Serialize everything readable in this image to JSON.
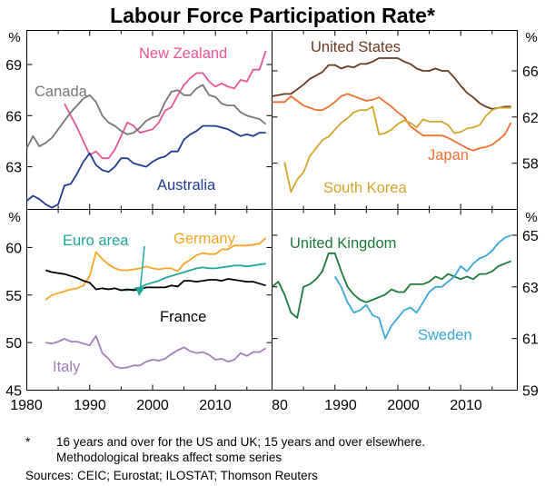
{
  "title": "Labour Force Participation Rate*",
  "footnote_marker": "*",
  "footnote_line1": "16 years and over for the US and UK; 15 years and over elsewhere.",
  "footnote_line2": "Methodological breaks affect some series",
  "sources": "Sources: CEIC; Eurostat; ILOSTAT; Thomson Reuters",
  "chart_data": [
    {
      "type": "line",
      "panel": "top-left",
      "unit_label": "%",
      "xlim": [
        1980,
        2019
      ],
      "ylim": [
        60.5,
        71
      ],
      "yticks": [
        63,
        66,
        69
      ],
      "series": [
        {
          "name": "New Zealand",
          "color": "#e8559a",
          "x": [
            1986,
            1988,
            1990,
            1991,
            1992,
            1993,
            1994,
            1995,
            1996,
            1997,
            1998,
            1999,
            2000,
            2001,
            2002,
            2003,
            2004,
            2005,
            2006,
            2007,
            2008,
            2009,
            2010,
            2011,
            2012,
            2013,
            2014,
            2015,
            2016,
            2017,
            2018
          ],
          "values": [
            66.7,
            65.3,
            63.7,
            63.9,
            63.5,
            63.5,
            64.0,
            64.8,
            65.6,
            65.4,
            65.0,
            65.1,
            65.2,
            65.6,
            66.3,
            66.5,
            67.2,
            67.8,
            68.2,
            68.5,
            68.5,
            68.0,
            67.7,
            67.9,
            67.7,
            67.6,
            68.1,
            68.0,
            68.7,
            68.7,
            69.8
          ]
        },
        {
          "name": "Canada",
          "color": "#767676",
          "x": [
            1980,
            1981,
            1982,
            1983,
            1984,
            1985,
            1986,
            1987,
            1988,
            1989,
            1990,
            1991,
            1992,
            1993,
            1994,
            1995,
            1996,
            1997,
            1998,
            1999,
            2000,
            2001,
            2002,
            2003,
            2004,
            2005,
            2006,
            2007,
            2008,
            2009,
            2010,
            2011,
            2012,
            2013,
            2014,
            2015,
            2016,
            2017,
            2018
          ],
          "values": [
            64.1,
            64.8,
            64.2,
            64.4,
            64.7,
            65.2,
            65.7,
            66.2,
            66.6,
            67.0,
            67.2,
            66.8,
            66.0,
            65.6,
            65.4,
            65.1,
            64.9,
            65.0,
            65.3,
            65.7,
            65.9,
            66.0,
            66.8,
            67.4,
            67.5,
            67.2,
            67.2,
            67.6,
            67.8,
            67.2,
            67.1,
            66.7,
            66.6,
            66.6,
            66.2,
            66.0,
            65.9,
            65.8,
            65.5
          ]
        },
        {
          "name": "Australia",
          "color": "#1f3c8f",
          "x": [
            1980,
            1981,
            1982,
            1983,
            1984,
            1985,
            1986,
            1987,
            1988,
            1989,
            1990,
            1991,
            1992,
            1993,
            1994,
            1995,
            1996,
            1997,
            1998,
            1999,
            2000,
            2001,
            2002,
            2003,
            2004,
            2005,
            2006,
            2007,
            2008,
            2009,
            2010,
            2011,
            2012,
            2013,
            2014,
            2015,
            2016,
            2017,
            2018
          ],
          "values": [
            61.0,
            61.3,
            61.1,
            60.8,
            60.6,
            60.8,
            61.9,
            62.0,
            62.6,
            63.3,
            63.8,
            63.1,
            62.8,
            62.7,
            63.0,
            63.5,
            63.5,
            63.2,
            63.1,
            63.0,
            63.3,
            63.5,
            63.6,
            63.9,
            63.9,
            64.6,
            64.9,
            65.1,
            65.4,
            65.4,
            65.4,
            65.3,
            65.2,
            65.0,
            64.8,
            64.9,
            64.8,
            65.0,
            65.0
          ]
        }
      ],
      "labels": [
        "New Zealand",
        "Canada",
        "Australia"
      ]
    },
    {
      "type": "line",
      "panel": "top-right",
      "unit_label": "%",
      "xlim": [
        1980,
        2019
      ],
      "ylim": [
        54,
        69.5
      ],
      "yticks": [
        58,
        62,
        66
      ],
      "series": [
        {
          "name": "United States",
          "color": "#6b3a1f",
          "x": [
            1980,
            1981,
            1982,
            1983,
            1984,
            1985,
            1986,
            1987,
            1988,
            1989,
            1990,
            1991,
            1992,
            1993,
            1994,
            1995,
            1996,
            1997,
            1998,
            1999,
            2000,
            2001,
            2002,
            2003,
            2004,
            2005,
            2006,
            2007,
            2008,
            2009,
            2010,
            2011,
            2012,
            2013,
            2014,
            2015,
            2016,
            2017,
            2018
          ],
          "values": [
            63.8,
            63.9,
            64.0,
            64.0,
            64.4,
            64.8,
            65.3,
            65.6,
            65.9,
            66.5,
            66.5,
            66.2,
            66.4,
            66.3,
            66.6,
            66.6,
            66.8,
            67.1,
            67.1,
            67.1,
            67.1,
            66.8,
            66.6,
            66.2,
            66.0,
            66.0,
            66.2,
            66.0,
            66.0,
            65.4,
            64.7,
            64.1,
            63.7,
            63.2,
            62.9,
            62.7,
            62.8,
            62.9,
            62.9
          ]
        },
        {
          "name": "Japan",
          "color": "#f07030",
          "x": [
            1980,
            1981,
            1982,
            1983,
            1984,
            1985,
            1986,
            1987,
            1988,
            1989,
            1990,
            1991,
            1992,
            1993,
            1994,
            1995,
            1996,
            1997,
            1998,
            1999,
            2000,
            2001,
            2002,
            2003,
            2004,
            2005,
            2006,
            2007,
            2008,
            2009,
            2010,
            2011,
            2012,
            2013,
            2014,
            2015,
            2016,
            2017,
            2018
          ],
          "values": [
            63.3,
            63.3,
            63.3,
            63.8,
            63.4,
            63.0,
            62.8,
            62.6,
            62.6,
            62.9,
            63.3,
            63.8,
            64.0,
            63.8,
            63.6,
            63.4,
            63.5,
            63.7,
            63.3,
            62.9,
            62.4,
            62.0,
            61.2,
            60.8,
            60.4,
            60.4,
            60.4,
            60.4,
            60.2,
            59.9,
            59.6,
            59.3,
            59.1,
            59.3,
            59.4,
            59.6,
            60.0,
            60.5,
            61.5
          ]
        },
        {
          "name": "South Korea",
          "color": "#d4a52a",
          "x": [
            1982,
            1983,
            1984,
            1985,
            1986,
            1987,
            1988,
            1989,
            1990,
            1991,
            1992,
            1993,
            1994,
            1995,
            1996,
            1997,
            1998,
            1999,
            2000,
            2001,
            2002,
            2003,
            2004,
            2005,
            2006,
            2007,
            2008,
            2009,
            2010,
            2011,
            2012,
            2013,
            2014,
            2015,
            2016,
            2017,
            2018
          ],
          "values": [
            58.1,
            55.5,
            56.6,
            57.2,
            58.6,
            59.3,
            60.0,
            60.3,
            60.9,
            61.5,
            61.9,
            62.4,
            62.6,
            62.6,
            62.9,
            60.5,
            60.6,
            60.9,
            61.4,
            61.7,
            61.5,
            61.1,
            61.8,
            61.6,
            61.6,
            61.6,
            61.3,
            60.6,
            60.7,
            61.0,
            61.1,
            61.3,
            62.1,
            62.6,
            62.8,
            62.8,
            62.8
          ]
        }
      ],
      "labels": [
        "United States",
        "Japan",
        "South Korea"
      ]
    },
    {
      "type": "line",
      "panel": "bottom-left",
      "unit_label": "%",
      "xlim": [
        1980,
        2019
      ],
      "ylim": [
        45,
        64
      ],
      "yticks": [
        45,
        50,
        55,
        60
      ],
      "series": [
        {
          "name": "Germany",
          "color": "#f6a623",
          "x": [
            1983,
            1984,
            1985,
            1986,
            1987,
            1988,
            1989,
            1990,
            1991,
            1992,
            1993,
            1994,
            1995,
            1996,
            1997,
            1998,
            1999,
            2000,
            2001,
            2002,
            2003,
            2004,
            2005,
            2006,
            2007,
            2008,
            2009,
            2010,
            2011,
            2012,
            2013,
            2014,
            2015,
            2016,
            2017,
            2018
          ],
          "values": [
            54.5,
            55.0,
            55.2,
            55.4,
            55.6,
            55.7,
            56.0,
            57.0,
            59.5,
            58.8,
            58.2,
            57.8,
            57.6,
            57.6,
            57.7,
            57.8,
            58.0,
            57.8,
            57.7,
            57.8,
            57.8,
            57.5,
            58.3,
            58.7,
            59.2,
            59.4,
            59.3,
            59.3,
            59.8,
            59.8,
            60.2,
            60.2,
            60.2,
            60.3,
            60.4,
            61.0
          ]
        },
        {
          "name": "Euro area",
          "color": "#1ea79b",
          "x": [
            1995,
            1996,
            1997,
            1998,
            1999,
            2000,
            2001,
            2002,
            2003,
            2004,
            2005,
            2006,
            2007,
            2008,
            2009,
            2010,
            2011,
            2012,
            2013,
            2014,
            2015,
            2016,
            2017,
            2018
          ],
          "values": [
            55.5,
            55.5,
            55.6,
            55.8,
            56.1,
            56.3,
            56.5,
            56.8,
            57.0,
            57.2,
            57.4,
            57.6,
            57.8,
            57.9,
            57.8,
            57.8,
            57.9,
            58.0,
            58.1,
            58.1,
            58.0,
            58.1,
            58.2,
            58.3
          ]
        },
        {
          "name": "France",
          "color": "#000000",
          "x": [
            1983,
            1984,
            1985,
            1986,
            1987,
            1988,
            1989,
            1990,
            1991,
            1992,
            1993,
            1994,
            1995,
            1996,
            1997,
            1998,
            1999,
            2000,
            2001,
            2002,
            2003,
            2004,
            2005,
            2006,
            2007,
            2008,
            2009,
            2010,
            2011,
            2012,
            2013,
            2014,
            2015,
            2016,
            2017,
            2018
          ],
          "values": [
            57.6,
            57.4,
            57.3,
            57.2,
            57.0,
            56.8,
            56.5,
            56.3,
            55.6,
            55.7,
            55.6,
            55.7,
            55.5,
            55.6,
            55.5,
            55.6,
            55.8,
            55.8,
            55.8,
            55.8,
            56.0,
            55.9,
            56.5,
            56.5,
            56.4,
            56.5,
            56.6,
            56.6,
            56.5,
            56.7,
            56.6,
            56.5,
            56.4,
            56.4,
            56.2,
            56.0
          ]
        },
        {
          "name": "Italy",
          "color": "#a37fb8",
          "x": [
            1983,
            1984,
            1985,
            1986,
            1987,
            1988,
            1989,
            1990,
            1991,
            1992,
            1993,
            1994,
            1995,
            1996,
            1997,
            1998,
            1999,
            2000,
            2001,
            2002,
            2003,
            2004,
            2005,
            2006,
            2007,
            2008,
            2009,
            2010,
            2011,
            2012,
            2013,
            2014,
            2015,
            2016,
            2017,
            2018
          ],
          "values": [
            50.0,
            49.9,
            50.1,
            50.4,
            50.1,
            50.1,
            49.9,
            49.7,
            50.7,
            48.9,
            48.3,
            47.5,
            47.3,
            47.4,
            47.6,
            47.6,
            48.0,
            48.2,
            48.1,
            48.3,
            48.8,
            49.2,
            49.5,
            49.1,
            48.9,
            49.0,
            48.7,
            48.2,
            48.3,
            48.0,
            48.2,
            48.9,
            48.6,
            49.0,
            49.0,
            49.4
          ]
        }
      ],
      "labels": [
        "Euro area",
        "Germany",
        "France",
        "Italy"
      ]
    },
    {
      "type": "line",
      "panel": "bottom-right",
      "unit_label": "%",
      "xlim": [
        1980,
        2019
      ],
      "ylim": [
        59,
        66
      ],
      "yticks": [
        59,
        61,
        63,
        65
      ],
      "series": [
        {
          "name": "United Kingdom",
          "color": "#1c7a3a",
          "x": [
            1980,
            1981,
            1982,
            1983,
            1984,
            1985,
            1986,
            1987,
            1988,
            1989,
            1990,
            1991,
            1992,
            1993,
            1994,
            1995,
            1996,
            1997,
            1998,
            1999,
            2000,
            2001,
            2002,
            2003,
            2004,
            2005,
            2006,
            2007,
            2008,
            2009,
            2010,
            2011,
            2012,
            2013,
            2014,
            2015,
            2016,
            2017,
            2018
          ],
          "values": [
            63.0,
            63.2,
            62.7,
            62.0,
            61.8,
            63.0,
            63.1,
            63.3,
            63.6,
            64.3,
            64.3,
            63.6,
            63.0,
            62.7,
            62.5,
            62.4,
            62.5,
            62.6,
            62.7,
            62.9,
            62.8,
            62.8,
            63.1,
            63.1,
            63.1,
            63.2,
            63.4,
            63.3,
            63.5,
            63.4,
            63.3,
            63.4,
            63.3,
            63.5,
            63.5,
            63.6,
            63.8,
            63.9,
            64.0
          ]
        },
        {
          "name": "Sweden",
          "color": "#3aa8d8",
          "x": [
            1990,
            1991,
            1992,
            1993,
            1994,
            1995,
            1996,
            1997,
            1998,
            1999,
            2000,
            2001,
            2002,
            2003,
            2004,
            2005,
            2006,
            2007,
            2008,
            2009,
            2010,
            2011,
            2012,
            2013,
            2014,
            2015,
            2016,
            2017,
            2018
          ],
          "values": [
            63.4,
            63.0,
            62.4,
            62.0,
            62.1,
            62.3,
            61.9,
            61.8,
            61.0,
            61.5,
            61.8,
            62.1,
            62.2,
            62.0,
            62.4,
            62.8,
            63.0,
            63.0,
            63.2,
            63.4,
            63.8,
            63.6,
            63.9,
            64.1,
            64.2,
            64.4,
            64.7,
            64.9,
            65.0
          ]
        }
      ],
      "labels": [
        "United Kingdom",
        "Sweden"
      ]
    }
  ],
  "x_tick_labels": {
    "left": [
      "1980",
      "1990",
      "2000",
      "2010"
    ],
    "right": [
      "80",
      "1990",
      "2000",
      "2010"
    ]
  }
}
